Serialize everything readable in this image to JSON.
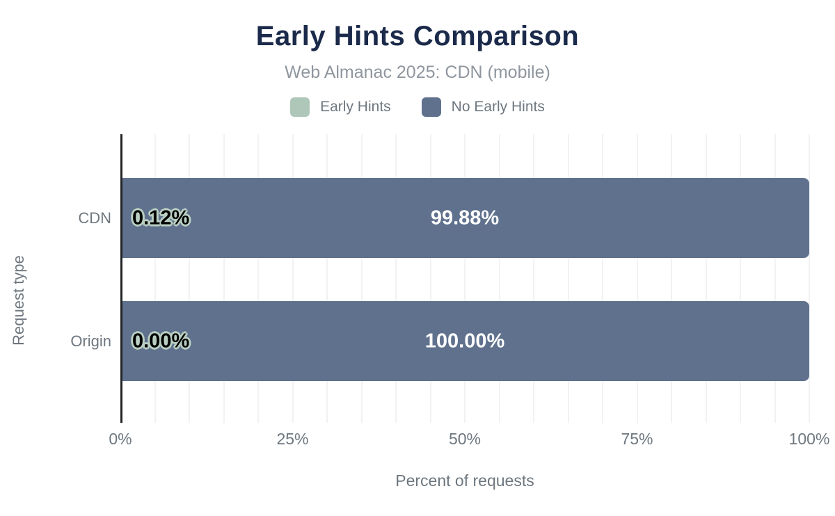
{
  "chart": {
    "title": "Early Hints Comparison",
    "subtitle": "Web Almanac 2025: CDN (mobile)",
    "xlabel": "Percent of requests",
    "ylabel": "Request type"
  },
  "chart_data": {
    "type": "bar",
    "orientation": "horizontal",
    "stacked": true,
    "title": "Early Hints Comparison",
    "subtitle": "Web Almanac 2025: CDN (mobile)",
    "xlabel": "Percent of requests",
    "ylabel": "Request type",
    "categories": [
      "CDN",
      "Origin"
    ],
    "series": [
      {
        "name": "Early Hints",
        "color": "#aec7b8",
        "values": [
          0.12,
          0.0
        ],
        "labels": [
          "0.12%",
          "0.00%"
        ]
      },
      {
        "name": "No Early Hints",
        "color": "#5f718d",
        "values": [
          99.88,
          100.0
        ],
        "labels": [
          "99.88%",
          "100.00%"
        ]
      }
    ],
    "xlim": [
      0,
      100
    ],
    "x_ticks": [
      {
        "value": 0,
        "label": "0%"
      },
      {
        "value": 25,
        "label": "25%"
      },
      {
        "value": 50,
        "label": "50%"
      },
      {
        "value": 75,
        "label": "75%"
      },
      {
        "value": 100,
        "label": "100%"
      }
    ],
    "grid": {
      "on": true,
      "minor_step_percent": 5
    },
    "legend_position": "top"
  },
  "colors": {
    "title": "#1b2a4a",
    "subtitle": "#8f969e",
    "muted_text": "#6e777f",
    "early_hints": "#aec7b8",
    "no_early_hints": "#5f718d",
    "gridline": "#f1f2f4",
    "axis_line": "#222426",
    "background": "#ffffff",
    "bar_label_on_dark": "#ffffff",
    "bar_label_on_light": "#000000"
  }
}
